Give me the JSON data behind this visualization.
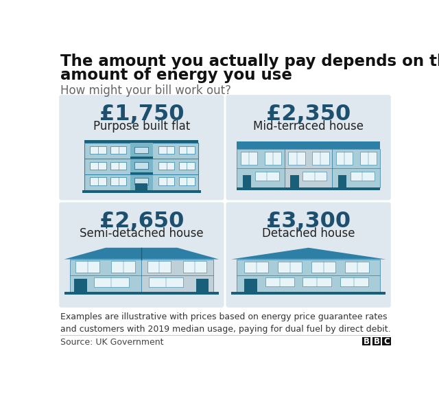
{
  "title_line1": "The amount you actually pay depends on the",
  "title_line2": "amount of energy you use",
  "subtitle": "How might your bill work out?",
  "cards": [
    {
      "price": "£1,750",
      "label": "Purpose built flat",
      "type": "flat"
    },
    {
      "price": "£2,350",
      "label": "Mid-terraced house",
      "type": "terraced"
    },
    {
      "price": "£2,650",
      "label": "Semi-detached house",
      "type": "semi"
    },
    {
      "price": "£3,300",
      "label": "Detached house",
      "type": "detached"
    }
  ],
  "card_bg": "#dfe8ef",
  "price_color": "#1d4f6e",
  "label_color": "#222222",
  "bld_light": "#a8cdd8",
  "bld_mid": "#7ab5c8",
  "bld_dark": "#2d7fa5",
  "bld_darker": "#1a5f7a",
  "bld_grey": "#9fb5bf",
  "bld_grey2": "#c0d0d8",
  "win_white": "#e8f4f8",
  "win_light": "#c8e0ea",
  "footer_note": "Examples are illustrative with prices based on energy price guarantee rates\nand customers with 2019 median usage, paying for dual fuel by direct debit.",
  "source_text": "Source: UK Government",
  "bg_color": "#ffffff",
  "sep_color": "#cccccc"
}
